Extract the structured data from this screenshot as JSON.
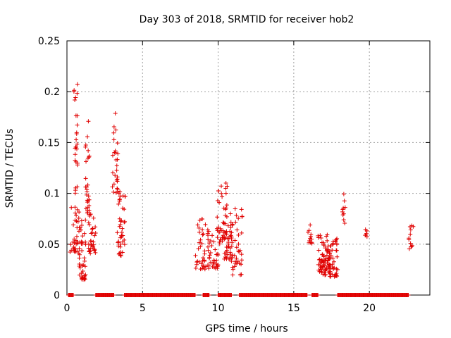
{
  "chart_data": {
    "type": "scatter",
    "title": "Day 303 of 2018, SRMTID for receiver hob2",
    "xlabel": "GPS time / hours",
    "ylabel": "SRMTID / TECUs",
    "xlim": [
      0,
      24
    ],
    "ylim": [
      0,
      0.25
    ],
    "xticks": [
      0,
      5,
      10,
      15,
      20
    ],
    "xtick_labels": [
      "0",
      "5",
      "10",
      "15",
      "20"
    ],
    "yticks": [
      0,
      0.05,
      0.1,
      0.15,
      0.2,
      0.25
    ],
    "ytick_labels": [
      "0",
      "0.05",
      "0.1",
      "0.15",
      "0.2",
      "0.25"
    ],
    "grid": true,
    "marker": "+",
    "color": "#e00000",
    "zero_segments": [
      [
        0.1,
        0.45
      ],
      [
        1.9,
        3.1
      ],
      [
        3.8,
        8.5
      ],
      [
        9.0,
        9.4
      ],
      [
        10.0,
        10.9
      ],
      [
        11.4,
        15.9
      ],
      [
        16.2,
        16.6
      ],
      [
        17.9,
        22.6
      ]
    ],
    "clusters": [
      {
        "x": [
          0.2,
          0.8
        ],
        "y": [
          0.04,
          0.09
        ],
        "n": 35
      },
      {
        "x": [
          0.45,
          0.7
        ],
        "y": [
          0.1,
          0.21
        ],
        "n": 26
      },
      {
        "x": [
          0.8,
          1.25
        ],
        "y": [
          0.015,
          0.08
        ],
        "n": 45
      },
      {
        "x": [
          1.2,
          1.5
        ],
        "y": [
          0.08,
          0.175
        ],
        "n": 28
      },
      {
        "x": [
          1.4,
          1.9
        ],
        "y": [
          0.04,
          0.08
        ],
        "n": 35
      },
      {
        "x": [
          3.0,
          3.4
        ],
        "y": [
          0.1,
          0.18
        ],
        "n": 26
      },
      {
        "x": [
          3.3,
          3.9
        ],
        "y": [
          0.035,
          0.105
        ],
        "n": 42
      },
      {
        "x": [
          8.5,
          9.2
        ],
        "y": [
          0.025,
          0.075
        ],
        "n": 36
      },
      {
        "x": [
          9.3,
          10.0
        ],
        "y": [
          0.025,
          0.065
        ],
        "n": 40
      },
      {
        "x": [
          9.9,
          10.6
        ],
        "y": [
          0.05,
          0.113
        ],
        "n": 42
      },
      {
        "x": [
          10.4,
          11.0
        ],
        "y": [
          0.035,
          0.075
        ],
        "n": 36
      },
      {
        "x": [
          10.8,
          11.6
        ],
        "y": [
          0.018,
          0.085
        ],
        "n": 42
      },
      {
        "x": [
          15.9,
          16.2
        ],
        "y": [
          0.05,
          0.073
        ],
        "n": 12
      },
      {
        "x": [
          16.6,
          17.9
        ],
        "y": [
          0.018,
          0.06
        ],
        "n": 80
      },
      {
        "x": [
          16.8,
          17.6
        ],
        "y": [
          0.02,
          0.05
        ],
        "n": 40
      },
      {
        "x": [
          18.2,
          18.4
        ],
        "y": [
          0.07,
          0.102
        ],
        "n": 10
      },
      {
        "x": [
          19.7,
          19.9
        ],
        "y": [
          0.055,
          0.065
        ],
        "n": 6
      },
      {
        "x": [
          22.6,
          22.9
        ],
        "y": [
          0.045,
          0.072
        ],
        "n": 12
      }
    ]
  }
}
